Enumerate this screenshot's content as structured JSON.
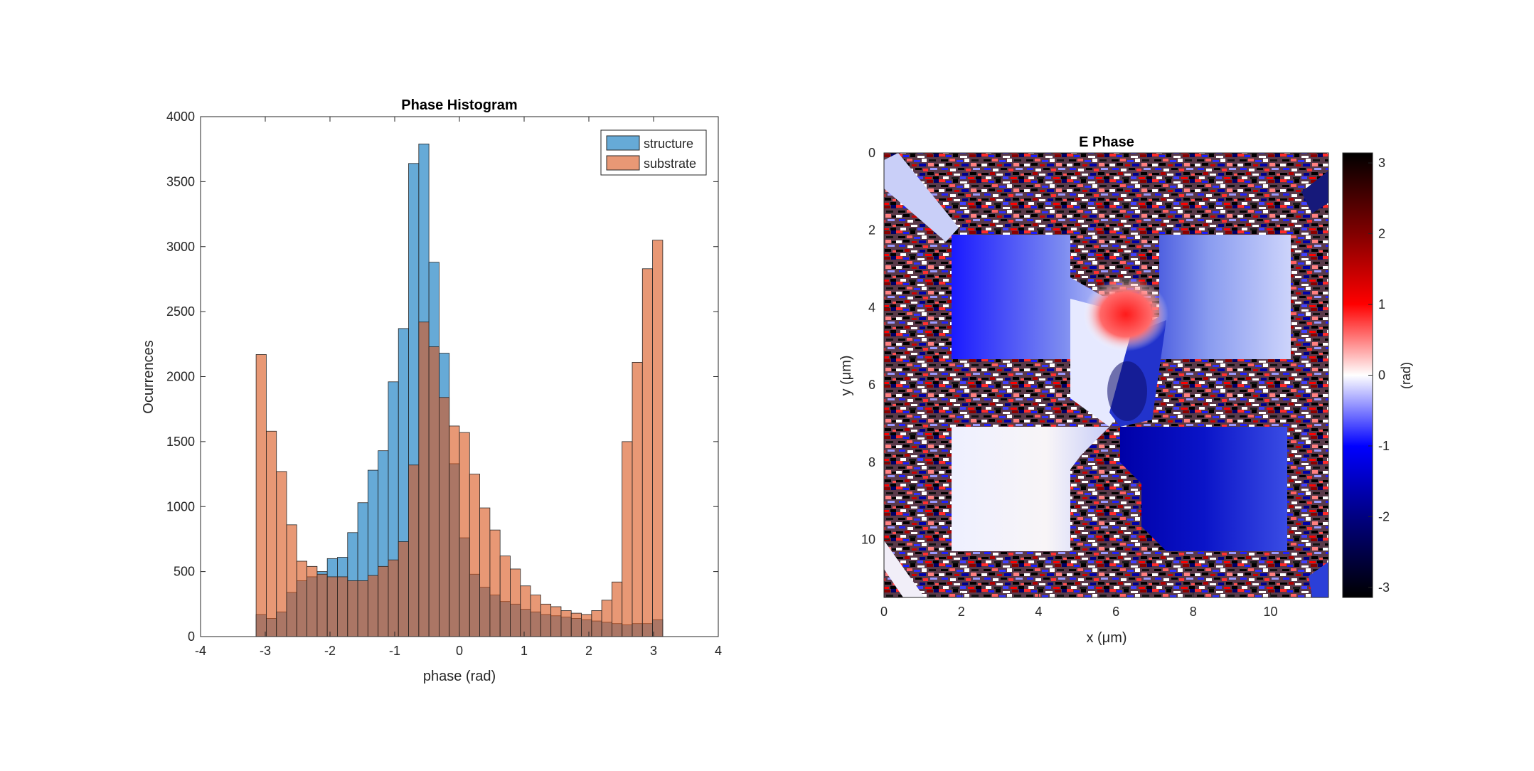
{
  "chart_data": [
    {
      "type": "bar",
      "subtype": "overlaid-histogram",
      "title": "Phase Histogram",
      "xlabel": "phase (rad)",
      "ylabel": "Ocurrences",
      "xlim": [
        -4,
        4
      ],
      "ylim": [
        0,
        4000
      ],
      "xticks": [
        -4,
        -3,
        -2,
        -1,
        0,
        1,
        2,
        3,
        4
      ],
      "yticks": [
        0,
        500,
        1000,
        1500,
        2000,
        2500,
        3000,
        3500,
        4000
      ],
      "bin_edges": [
        -3.1416,
        -2.9845,
        -2.8274,
        -2.6704,
        -2.5133,
        -2.3562,
        -2.1991,
        -2.042,
        -1.885,
        -1.7279,
        -1.5708,
        -1.4137,
        -1.2566,
        -1.0996,
        -0.9425,
        -0.7854,
        -0.6283,
        -0.4712,
        -0.3142,
        -0.1571,
        0.0,
        0.1571,
        0.3142,
        0.4712,
        0.6283,
        0.7854,
        0.9425,
        1.0996,
        1.2566,
        1.4137,
        1.5708,
        1.7279,
        1.885,
        2.042,
        2.1991,
        2.3562,
        2.5133,
        2.6704,
        2.8274,
        2.9845,
        3.1416
      ],
      "grid": false,
      "legend_position": "top-right",
      "series": [
        {
          "name": "structure",
          "color": "#0072BD",
          "values": [
            170,
            140,
            190,
            340,
            430,
            460,
            500,
            600,
            610,
            800,
            1030,
            1280,
            1430,
            1960,
            2370,
            3640,
            3790,
            2880,
            2180,
            1330,
            760,
            480,
            380,
            320,
            270,
            250,
            210,
            190,
            170,
            160,
            150,
            140,
            130,
            120,
            110,
            100,
            90,
            100,
            100,
            130
          ]
        },
        {
          "name": "substrate",
          "color": "#D95319",
          "values": [
            2170,
            1580,
            1270,
            860,
            580,
            540,
            480,
            460,
            460,
            430,
            430,
            470,
            540,
            590,
            730,
            1320,
            2420,
            2230,
            1840,
            1620,
            1570,
            1250,
            990,
            820,
            620,
            520,
            390,
            320,
            250,
            230,
            200,
            180,
            170,
            200,
            280,
            420,
            1500,
            2110,
            2830,
            3050
          ]
        }
      ]
    },
    {
      "type": "heatmap",
      "title": "E Phase",
      "xlabel": "x (μm)",
      "ylabel": "y (μm)",
      "xlim": [
        0,
        11.5
      ],
      "ylim": [
        11.5,
        0
      ],
      "xticks": [
        0,
        2,
        4,
        6,
        8,
        10
      ],
      "yticks": [
        0,
        2,
        4,
        6,
        8,
        10
      ],
      "colormap": "blue-white-red diverging (black at ends)",
      "colorbar": {
        "label": "(rad)",
        "clim": [
          -3.1416,
          3.1416
        ],
        "ticks": [
          -3,
          -2,
          -1,
          0,
          1,
          2,
          3
        ]
      }
    }
  ]
}
